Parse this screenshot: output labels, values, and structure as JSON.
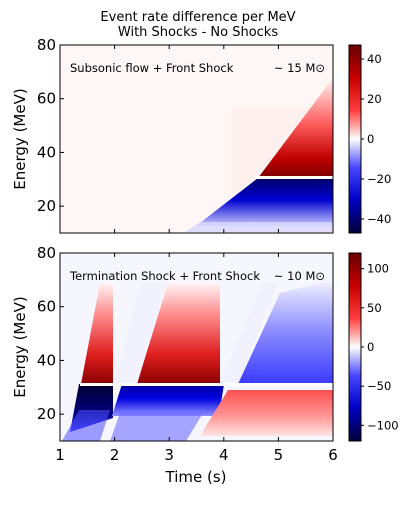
{
  "chart_data": [
    {
      "type": "heatmap",
      "title": "Event rate difference per MeV",
      "subtitle": "With Shocks - No Shocks",
      "xlabel": "",
      "ylabel": "Energy (MeV)",
      "xlim": [
        1,
        6
      ],
      "ylim": [
        10,
        80
      ],
      "yticks": [
        20,
        40,
        60,
        80
      ],
      "annotation": "Subsonic flow + Front Shock",
      "mass_label": "~ 15 M⊙",
      "colorbar": {
        "range": [
          -47,
          47
        ],
        "ticks": [
          40,
          20,
          0,
          -20,
          -40
        ],
        "tick_labels": [
          "40",
          "20",
          "0",
          "−20",
          "−40"
        ],
        "colors": {
          "negative": "#00003a",
          "zero": "#ffffff",
          "positive": "#6b0000"
        }
      },
      "regions": [
        {
          "sign": "positive",
          "t": [
            4.6,
            6.0
          ],
          "E": [
            30,
            63
          ],
          "peak": 45
        },
        {
          "sign": "negative",
          "t": [
            3.6,
            6.0
          ],
          "E": [
            14,
            29
          ],
          "peak": -45
        }
      ]
    },
    {
      "type": "heatmap",
      "xlabel": "Time (s)",
      "ylabel": "Energy (MeV)",
      "xlim": [
        1,
        6
      ],
      "ylim": [
        10,
        80
      ],
      "xticks": [
        1,
        2,
        3,
        4,
        5,
        6
      ],
      "yticks": [
        20,
        40,
        60,
        80
      ],
      "annotation": "Termination Shock + Front Shock",
      "mass_label": "~ 10 M⊙",
      "colorbar": {
        "range": [
          -120,
          120
        ],
        "ticks": [
          100,
          50,
          0,
          -50,
          -100
        ],
        "tick_labels": [
          "100",
          "50",
          "0",
          "−50",
          "−100"
        ],
        "colors": {
          "negative": "#00003a",
          "zero": "#ffffff",
          "positive": "#6b0000"
        }
      },
      "regions": [
        {
          "sign": "positive",
          "t": [
            1.4,
            2.1
          ],
          "E": [
            31,
            70
          ],
          "peak": 110
        },
        {
          "sign": "negative",
          "t": [
            1.4,
            2.0
          ],
          "E": [
            12,
            29
          ],
          "peak": -115
        },
        {
          "sign": "positive",
          "t": [
            2.4,
            3.8
          ],
          "E": [
            31,
            70
          ],
          "peak": 90
        },
        {
          "sign": "negative",
          "t": [
            2.0,
            3.9
          ],
          "E": [
            12,
            29
          ],
          "peak": -95
        },
        {
          "sign": "negative",
          "t": [
            4.3,
            6.0
          ],
          "E": [
            31,
            70
          ],
          "peak": -40
        },
        {
          "sign": "positive",
          "t": [
            3.3,
            6.0
          ],
          "E": [
            12,
            29
          ],
          "peak": 60
        }
      ]
    }
  ]
}
